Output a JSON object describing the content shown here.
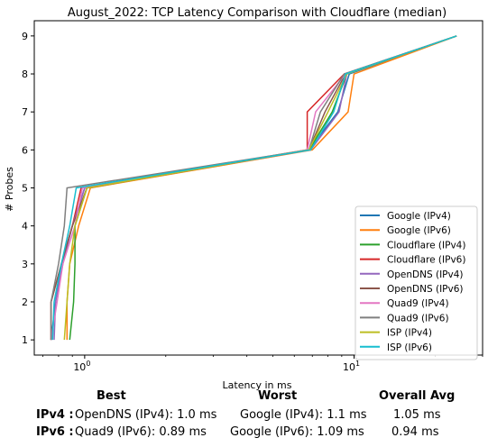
{
  "chart_data": {
    "type": "line",
    "title": "August_2022: TCP Latency Comparison with Cloudflare (median)",
    "xlabel": "Latency in ms",
    "ylabel": "# Probes",
    "xscale": "log",
    "xlim": [
      0.65,
      30
    ],
    "ylim": [
      0.6,
      9.4
    ],
    "xticks": [
      {
        "value": 1,
        "label": "10^0",
        "base": "10",
        "exp": "0"
      },
      {
        "value": 10,
        "label": "10^1",
        "base": "10",
        "exp": "1"
      }
    ],
    "yticks": [
      1,
      2,
      3,
      4,
      5,
      6,
      7,
      8,
      9
    ],
    "grid": false,
    "legend": "bottom-right",
    "series": [
      {
        "name": "Google (IPv4)",
        "color": "#1f77b4",
        "points": [
          [
            0.75,
            1
          ],
          [
            0.78,
            2
          ],
          [
            0.82,
            3
          ],
          [
            0.9,
            4
          ],
          [
            1.0,
            5
          ],
          [
            6.8,
            6
          ],
          [
            8.7,
            7
          ],
          [
            9.6,
            8
          ],
          [
            24,
            9
          ]
        ]
      },
      {
        "name": "Google (IPv6)",
        "color": "#ff7f0e",
        "points": [
          [
            0.86,
            1
          ],
          [
            0.86,
            2
          ],
          [
            0.88,
            3
          ],
          [
            0.95,
            4
          ],
          [
            1.05,
            5
          ],
          [
            7.0,
            6
          ],
          [
            9.5,
            7
          ],
          [
            10.0,
            8
          ],
          [
            24,
            9
          ]
        ]
      },
      {
        "name": "Cloudflare (IPv4)",
        "color": "#2ca02c",
        "points": [
          [
            0.88,
            1
          ],
          [
            0.91,
            2
          ],
          [
            0.92,
            3
          ],
          [
            0.92,
            4
          ],
          [
            1.02,
            5
          ],
          [
            6.8,
            6
          ],
          [
            8.3,
            7
          ],
          [
            9.4,
            8
          ],
          [
            24,
            9
          ]
        ]
      },
      {
        "name": "Cloudflare (IPv6)",
        "color": "#d62728",
        "points": [
          [
            0.75,
            1
          ],
          [
            0.75,
            2
          ],
          [
            0.82,
            3
          ],
          [
            0.9,
            4
          ],
          [
            0.97,
            5
          ],
          [
            6.7,
            6
          ],
          [
            6.7,
            7
          ],
          [
            9.2,
            8
          ],
          [
            24,
            9
          ]
        ]
      },
      {
        "name": "OpenDNS (IPv4)",
        "color": "#9467bd",
        "points": [
          [
            0.77,
            1
          ],
          [
            0.78,
            2
          ],
          [
            0.83,
            3
          ],
          [
            0.9,
            4
          ],
          [
            1.0,
            5
          ],
          [
            6.9,
            6
          ],
          [
            8.8,
            7
          ],
          [
            9.4,
            8
          ],
          [
            24,
            9
          ]
        ]
      },
      {
        "name": "OpenDNS (IPv6)",
        "color": "#8c564b",
        "points": [
          [
            0.75,
            1
          ],
          [
            0.75,
            2
          ],
          [
            0.82,
            3
          ],
          [
            0.9,
            4
          ],
          [
            1.02,
            5
          ],
          [
            6.8,
            6
          ],
          [
            7.8,
            7
          ],
          [
            9.3,
            8
          ],
          [
            24,
            9
          ]
        ]
      },
      {
        "name": "Quad9 (IPv4)",
        "color": "#e377c2",
        "points": [
          [
            0.75,
            1
          ],
          [
            0.79,
            2
          ],
          [
            0.83,
            3
          ],
          [
            0.92,
            4
          ],
          [
            0.98,
            5
          ],
          [
            6.7,
            6
          ],
          [
            7.2,
            7
          ],
          [
            9.3,
            8
          ],
          [
            24,
            9
          ]
        ]
      },
      {
        "name": "Quad9 (IPv6)",
        "color": "#7f7f7f",
        "points": [
          [
            0.75,
            1
          ],
          [
            0.75,
            2
          ],
          [
            0.8,
            3
          ],
          [
            0.84,
            4
          ],
          [
            0.86,
            5
          ],
          [
            6.8,
            6
          ],
          [
            7.5,
            7
          ],
          [
            9.2,
            8
          ],
          [
            24,
            9
          ]
        ]
      },
      {
        "name": "ISP (IPv4)",
        "color": "#bcbd22",
        "points": [
          [
            0.84,
            1
          ],
          [
            0.86,
            2
          ],
          [
            0.88,
            3
          ],
          [
            0.92,
            4
          ],
          [
            1.02,
            5
          ],
          [
            6.8,
            6
          ],
          [
            8.0,
            7
          ],
          [
            9.4,
            8
          ],
          [
            24,
            9
          ]
        ]
      },
      {
        "name": "ISP (IPv6)",
        "color": "#17becf",
        "points": [
          [
            0.76,
            1
          ],
          [
            0.77,
            2
          ],
          [
            0.82,
            3
          ],
          [
            0.88,
            4
          ],
          [
            0.93,
            5
          ],
          [
            6.9,
            6
          ],
          [
            8.4,
            7
          ],
          [
            9.3,
            8
          ],
          [
            24,
            9
          ]
        ]
      }
    ]
  },
  "summary": {
    "headers": {
      "best": "Best",
      "worst": "Worst",
      "avg": "Overall Avg"
    },
    "rows": [
      {
        "label": "IPv4 :",
        "best": "OpenDNS (IPv4): 1.0 ms",
        "worst": "Google (IPv4): 1.1 ms",
        "avg": "1.05 ms"
      },
      {
        "label": "IPv6 :",
        "best": "Quad9 (IPv6): 0.89 ms",
        "worst": "Google (IPv6): 1.09 ms",
        "avg": "0.94 ms"
      }
    ]
  }
}
